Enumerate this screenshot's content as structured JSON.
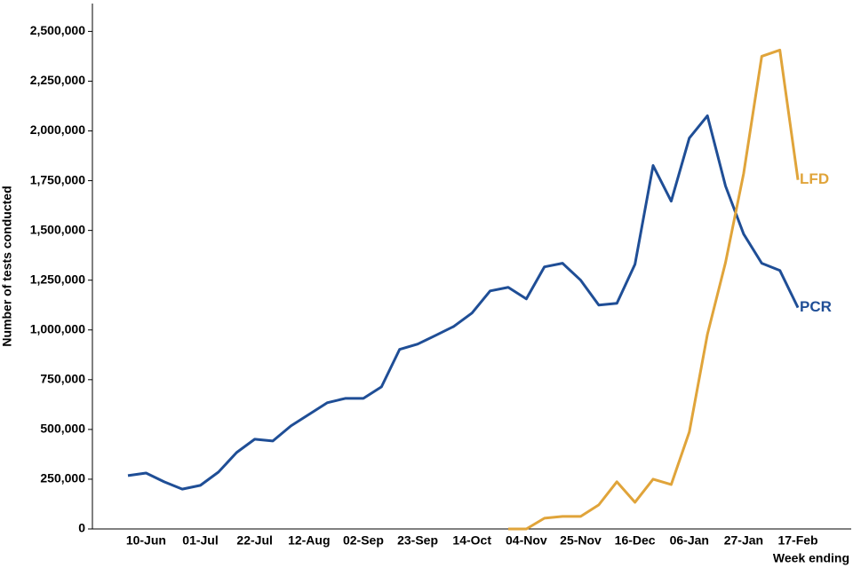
{
  "chart_data": {
    "type": "line",
    "ylabel": "Number of tests conducted",
    "xlabel": "Week ending",
    "categories": [
      null,
      "10-Jun",
      null,
      null,
      "01-Jul",
      null,
      null,
      "22-Jul",
      null,
      null,
      "12-Aug",
      null,
      null,
      "02-Sep",
      null,
      null,
      "23-Sep",
      null,
      null,
      "14-Oct",
      null,
      null,
      "04-Nov",
      null,
      null,
      "25-Nov",
      null,
      null,
      "16-Dec",
      null,
      null,
      "06-Jan",
      null,
      null,
      "27-Jan",
      null,
      null,
      "17-Feb"
    ],
    "series": [
      {
        "name": "PCR",
        "color": "#1f4e96",
        "values": [
          268000,
          281000,
          237000,
          200000,
          219000,
          286000,
          384000,
          451000,
          442000,
          518000,
          576000,
          634000,
          656000,
          656000,
          714000,
          902000,
          929000,
          973000,
          1018000,
          1085000,
          1196000,
          1214000,
          1156000,
          1317000,
          1335000,
          1250000,
          1125000,
          1134000,
          1330000,
          1826000,
          1647000,
          1964000,
          2076000,
          1723000,
          1482000,
          1335000,
          1299000,
          1112000
        ]
      },
      {
        "name": "LFD",
        "color": "#e0a43a",
        "values": [
          null,
          null,
          null,
          null,
          null,
          null,
          null,
          null,
          null,
          null,
          null,
          null,
          null,
          null,
          null,
          null,
          null,
          null,
          null,
          null,
          null,
          0,
          0,
          54000,
          63000,
          63000,
          121000,
          237000,
          134000,
          250000,
          223000,
          487000,
          978000,
          1339000,
          1786000,
          2375000,
          2406000,
          1754000
        ]
      }
    ],
    "ylim": [
      0,
      2640000
    ],
    "yticks": [
      {
        "value": 0,
        "label": "0"
      },
      {
        "value": 250000,
        "label": "250,000"
      },
      {
        "value": 500000,
        "label": "500,000"
      },
      {
        "value": 750000,
        "label": "750,000"
      },
      {
        "value": 1000000,
        "label": "1,000,000"
      },
      {
        "value": 1250000,
        "label": "1,250,000"
      },
      {
        "value": 1500000,
        "label": "1,500,000"
      },
      {
        "value": 1750000,
        "label": "1,750,000"
      },
      {
        "value": 2000000,
        "label": "2,000,000"
      },
      {
        "value": 2250000,
        "label": "2,250,000"
      },
      {
        "value": 2500000,
        "label": "2,500,000"
      }
    ]
  }
}
